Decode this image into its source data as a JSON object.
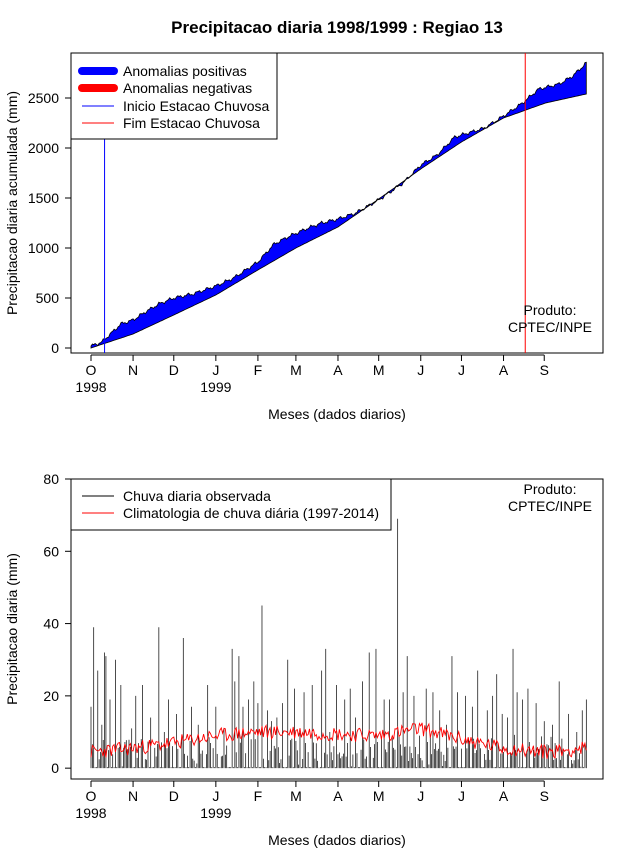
{
  "chart_data": [
    {
      "type": "area",
      "title": "Precipitacao diaria 1998/1999 : Regiao 13",
      "xlabel": "Meses (dados diarios)",
      "ylabel": "Precipitacao diaria acumulada (mm)",
      "ylim": [
        -50,
        2950
      ],
      "yticks": [
        0,
        500,
        1000,
        1500,
        2000,
        2500
      ],
      "month_ticks": [
        "O",
        "N",
        "D",
        "J",
        "F",
        "M",
        "A",
        "M",
        "J",
        "J",
        "A",
        "S"
      ],
      "year_labels": [
        {
          "month_index": 0,
          "text": "1998"
        },
        {
          "month_index": 3,
          "text": "1999"
        }
      ],
      "legend": {
        "position": "top-left",
        "entries": [
          {
            "label": "Anomalias positivas",
            "color": "#0000ff",
            "style": "thick"
          },
          {
            "label": "Anomalias negativas",
            "color": "#ff0000",
            "style": "thick"
          },
          {
            "label": "Inicio Estacao Chuvosa",
            "color": "#0000ff",
            "style": "thin"
          },
          {
            "label": "Fim Estacao Chuvosa",
            "color": "#ff0000",
            "style": "thin"
          }
        ]
      },
      "product_note": [
        "Produto:",
        "CPTEC/INPE"
      ],
      "series": [
        {
          "name": "Climatologia acumulada (dia, mm)",
          "points": [
            [
              0,
              0
            ],
            [
              31,
              140
            ],
            [
              61,
              330
            ],
            [
              92,
              530
            ],
            [
              123,
              780
            ],
            [
              151,
              1000
            ],
            [
              182,
              1210
            ],
            [
              212,
              1490
            ],
            [
              243,
              1790
            ],
            [
              273,
              2060
            ],
            [
              304,
              2300
            ],
            [
              335,
              2450
            ],
            [
              365,
              2540
            ]
          ]
        },
        {
          "name": "Observada acumulada (dia, mm)",
          "points": [
            [
              0,
              20
            ],
            [
              8,
              60
            ],
            [
              15,
              150
            ],
            [
              22,
              240
            ],
            [
              31,
              280
            ],
            [
              40,
              360
            ],
            [
              50,
              440
            ],
            [
              61,
              500
            ],
            [
              75,
              540
            ],
            [
              92,
              620
            ],
            [
              105,
              700
            ],
            [
              123,
              860
            ],
            [
              135,
              1040
            ],
            [
              145,
              1110
            ],
            [
              160,
              1200
            ],
            [
              170,
              1250
            ],
            [
              182,
              1290
            ],
            [
              195,
              1350
            ],
            [
              212,
              1480
            ],
            [
              230,
              1650
            ],
            [
              243,
              1830
            ],
            [
              255,
              1930
            ],
            [
              268,
              2110
            ],
            [
              290,
              2200
            ],
            [
              304,
              2320
            ],
            [
              318,
              2450
            ],
            [
              330,
              2590
            ],
            [
              345,
              2640
            ],
            [
              355,
              2720
            ],
            [
              365,
              2850
            ]
          ]
        }
      ],
      "markers": [
        {
          "name": "Inicio Estacao Chuvosa",
          "day": 10,
          "color": "#0000ff"
        },
        {
          "name": "Fim Estacao Chuvosa",
          "day": 320,
          "color": "#ff0000"
        }
      ]
    },
    {
      "type": "line",
      "title": "",
      "xlabel": "Meses (dados diarios)",
      "ylabel": "Precipitacao diaria (mm)",
      "ylim": [
        -3,
        80
      ],
      "yticks": [
        0,
        20,
        40,
        60,
        80
      ],
      "month_ticks": [
        "O",
        "N",
        "D",
        "J",
        "F",
        "M",
        "A",
        "M",
        "J",
        "J",
        "A",
        "S"
      ],
      "year_labels": [
        {
          "month_index": 0,
          "text": "1998"
        },
        {
          "month_index": 3,
          "text": "1999"
        }
      ],
      "legend": {
        "position": "top-left",
        "entries": [
          {
            "label": "Chuva diaria observada",
            "color": "#000000"
          },
          {
            "label": "Climatologia de chuva diária (1997-2014)",
            "color": "#ff0000"
          }
        ]
      },
      "product_note": [
        "Produto:",
        "CPTEC/INPE"
      ],
      "series": [
        {
          "name": "Chuva diaria observada (mm, spikes)",
          "spikes": [
            [
              0,
              17
            ],
            [
              2,
              39
            ],
            [
              5,
              27
            ],
            [
              8,
              12
            ],
            [
              10,
              32
            ],
            [
              11,
              31
            ],
            [
              14,
              19
            ],
            [
              18,
              30
            ],
            [
              22,
              23
            ],
            [
              30,
              11
            ],
            [
              33,
              20
            ],
            [
              38,
              23
            ],
            [
              44,
              14
            ],
            [
              50,
              39
            ],
            [
              54,
              10
            ],
            [
              57,
              19
            ],
            [
              63,
              15
            ],
            [
              68,
              36
            ],
            [
              74,
              17
            ],
            [
              79,
              12
            ],
            [
              86,
              23
            ],
            [
              92,
              17
            ],
            [
              98,
              11
            ],
            [
              104,
              33
            ],
            [
              106,
              24
            ],
            [
              109,
              31
            ],
            [
              112,
              17
            ],
            [
              116,
              19
            ],
            [
              120,
              24
            ],
            [
              123,
              18
            ],
            [
              126,
              45
            ],
            [
              130,
              16
            ],
            [
              133,
              13
            ],
            [
              137,
              14
            ],
            [
              141,
              18
            ],
            [
              145,
              30
            ],
            [
              150,
              22
            ],
            [
              157,
              21
            ],
            [
              163,
              23
            ],
            [
              170,
              27
            ],
            [
              173,
              33
            ],
            [
              176,
              10
            ],
            [
              181,
              23
            ],
            [
              187,
              19
            ],
            [
              191,
              22
            ],
            [
              195,
              14
            ],
            [
              200,
              24
            ],
            [
              205,
              32
            ],
            [
              210,
              33
            ],
            [
              216,
              19
            ],
            [
              220,
              19
            ],
            [
              226,
              69
            ],
            [
              230,
              21
            ],
            [
              233,
              31
            ],
            [
              238,
              20
            ],
            [
              242,
              9
            ],
            [
              247,
              22
            ],
            [
              252,
              21
            ],
            [
              257,
              16
            ],
            [
              262,
              12
            ],
            [
              266,
              31
            ],
            [
              270,
              21
            ],
            [
              276,
              20
            ],
            [
              281,
              17
            ],
            [
              285,
              27
            ],
            [
              292,
              16
            ],
            [
              296,
              20
            ],
            [
              299,
              26
            ],
            [
              303,
              15
            ],
            [
              307,
              14
            ],
            [
              311,
              33
            ],
            [
              314,
              21
            ],
            [
              318,
              19
            ],
            [
              322,
              22
            ],
            [
              328,
              18
            ],
            [
              334,
              13
            ],
            [
              340,
              12
            ],
            [
              345,
              24
            ],
            [
              352,
              15
            ],
            [
              358,
              10
            ],
            [
              362,
              16
            ],
            [
              365,
              19
            ]
          ]
        },
        {
          "name": "Climatologia de chuva diaria (mm)",
          "points": [
            [
              0,
              4.5
            ],
            [
              30,
              5.5
            ],
            [
              61,
              7
            ],
            [
              92,
              9
            ],
            [
              123,
              10
            ],
            [
              151,
              10
            ],
            [
              182,
              9.5
            ],
            [
              212,
              9
            ],
            [
              243,
              11
            ],
            [
              273,
              8
            ],
            [
              304,
              5.5
            ],
            [
              335,
              4.5
            ],
            [
              365,
              5.5
            ]
          ]
        }
      ]
    }
  ]
}
